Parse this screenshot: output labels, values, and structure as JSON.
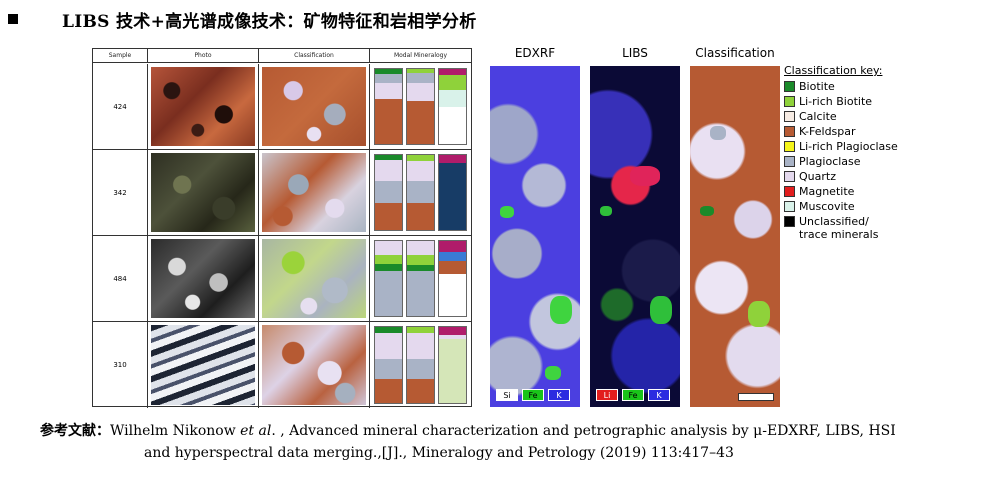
{
  "heading": {
    "title": "LIBS 技术+高光谱成像技术：矿物特征和岩相学分析"
  },
  "table": {
    "headers": [
      "Sample",
      "Photo",
      "Classification",
      "Modal Mineralogy"
    ],
    "rows": [
      {
        "sample": "424"
      },
      {
        "sample": "342"
      },
      {
        "sample": "484"
      },
      {
        "sample": "310"
      }
    ]
  },
  "panels": {
    "edxrf": {
      "title": "EDXRF",
      "channels": [
        "Si",
        "Fe",
        "K"
      ]
    },
    "libs": {
      "title": "LIBS",
      "channels": [
        "Li",
        "Fe",
        "K"
      ]
    },
    "classification": {
      "title": "Classification"
    }
  },
  "legend": {
    "title": "Classification key:",
    "items": [
      {
        "label": "Biotite",
        "color": "#1a8a2a"
      },
      {
        "label": "Li-rich Biotite",
        "color": "#8fd23a"
      },
      {
        "label": "Calcite",
        "color": "#f7ece4"
      },
      {
        "label": "K-Feldspar",
        "color": "#b65a33"
      },
      {
        "label": "Li-rich Plagioclase",
        "color": "#f5f51a"
      },
      {
        "label": "Plagioclase",
        "color": "#a9b3c6"
      },
      {
        "label": "Quartz",
        "color": "#e4d9ee"
      },
      {
        "label": "Magnetite",
        "color": "#e21d1d"
      },
      {
        "label": "Muscovite",
        "color": "#d9f2ea"
      },
      {
        "label": "Unclassified/",
        "label2": "trace minerals",
        "color": "#000000"
      }
    ]
  },
  "reference": {
    "label": "参考文献：",
    "authors": "Wilhelm Nikonow ",
    "etal": "et al",
    "text1": ". , Advanced mineral characterization and petrographic analysis by μ-EDXRF, LIBS, HSI",
    "text2": "and hyperspectral data merging.,[J]., Mineralogy and Petrology (2019) 113:417–43"
  }
}
